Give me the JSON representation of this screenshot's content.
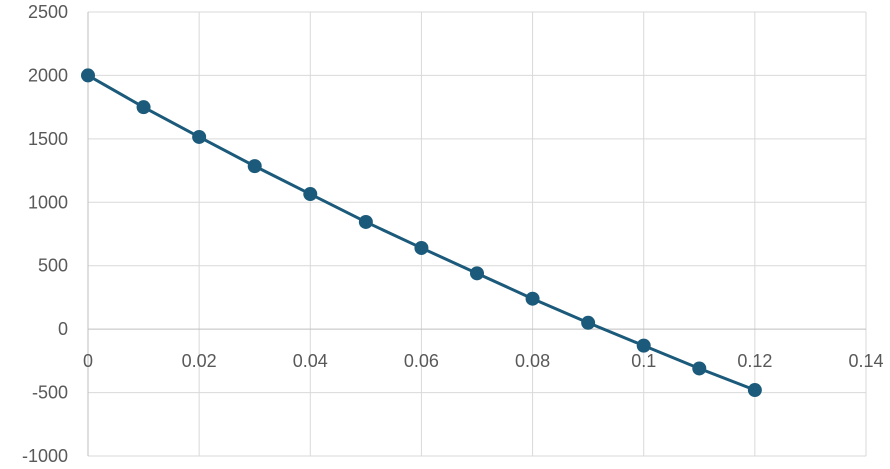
{
  "chart_data": {
    "type": "scatter",
    "title": "",
    "xlabel": "",
    "ylabel": "",
    "xlim": [
      0,
      0.14
    ],
    "ylim": [
      -1000,
      2500
    ],
    "x_ticks": [
      "0",
      "0.02",
      "0.04",
      "0.06",
      "0.08",
      "0.1",
      "0.12",
      "0.14"
    ],
    "y_ticks": [
      "-1000",
      "-500",
      "0",
      "500",
      "1000",
      "1500",
      "2000",
      "2500"
    ],
    "x_tick_values": [
      0,
      0.02,
      0.04,
      0.06,
      0.08,
      0.1,
      0.12,
      0.14
    ],
    "y_tick_values": [
      -1000,
      -500,
      0,
      500,
      1000,
      1500,
      2000,
      2500
    ],
    "grid": true,
    "legend": "none",
    "series": [
      {
        "color": "#1b5a7a",
        "markers": true,
        "line": true,
        "x": [
          0,
          0.01,
          0.02,
          0.03,
          0.04,
          0.05,
          0.06,
          0.07,
          0.08,
          0.09,
          0.1,
          0.11,
          0.12
        ],
        "y": [
          2000,
          1750,
          1515,
          1285,
          1065,
          845,
          640,
          440,
          240,
          50,
          -130,
          -310,
          -480
        ]
      }
    ]
  }
}
